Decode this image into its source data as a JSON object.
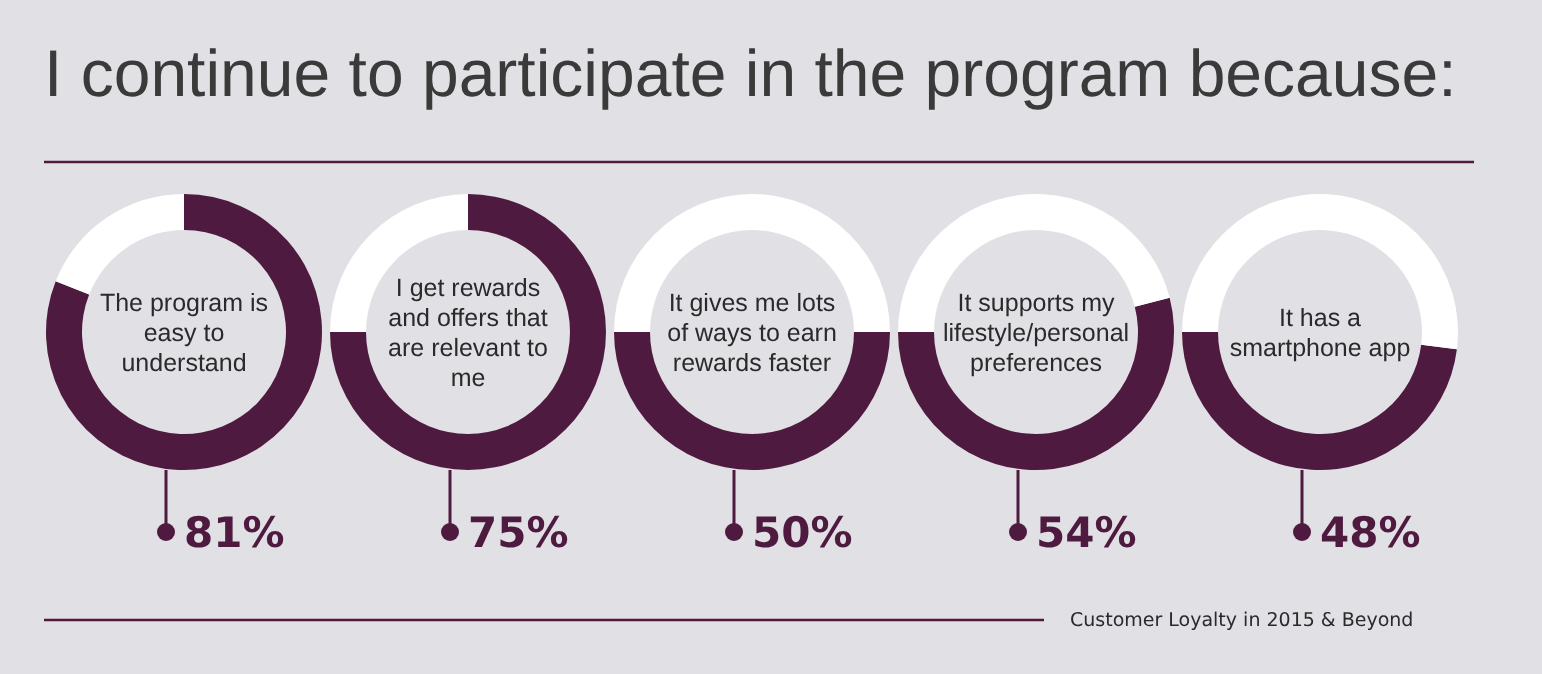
{
  "chart_data": [
    {
      "type": "other",
      "title": "I continue to participate in the program because:",
      "annotations": [
        "Customer Loyalty in 2015 & Beyond"
      ]
    },
    {
      "type": "donut",
      "title": "The program is easy to understand",
      "categories": [
        null,
        null
      ],
      "values": [
        81,
        19
      ],
      "colors": [
        "#4f1a3f",
        "#ffffff"
      ],
      "value_labels": [
        "81%",
        null
      ]
    },
    {
      "type": "donut",
      "title": "I get rewards and offers that are relevant to me",
      "categories": [
        null,
        null
      ],
      "values": [
        75,
        25
      ],
      "colors": [
        "#4f1a3f",
        "#ffffff"
      ],
      "value_labels": [
        "75%",
        null
      ]
    },
    {
      "type": "donut",
      "title": "It gives me lots of ways to earn rewards faster",
      "categories": [
        null,
        null
      ],
      "values": [
        50,
        50
      ],
      "colors": [
        "#4f1a3f",
        "#ffffff"
      ],
      "value_labels": [
        "50%",
        null
      ]
    },
    {
      "type": "donut",
      "title": "It supports my lifestyle/personal preferences",
      "categories": [
        null,
        null
      ],
      "values": [
        54,
        46
      ],
      "colors": [
        "#4f1a3f",
        "#ffffff"
      ],
      "value_labels": [
        "54%",
        null
      ]
    },
    {
      "type": "donut",
      "title": "It has a smartphone app",
      "categories": [
        null,
        null
      ],
      "values": [
        48,
        52
      ],
      "colors": [
        "#4f1a3f",
        "#ffffff"
      ],
      "value_labels": [
        "48%",
        null
      ]
    }
  ]
}
